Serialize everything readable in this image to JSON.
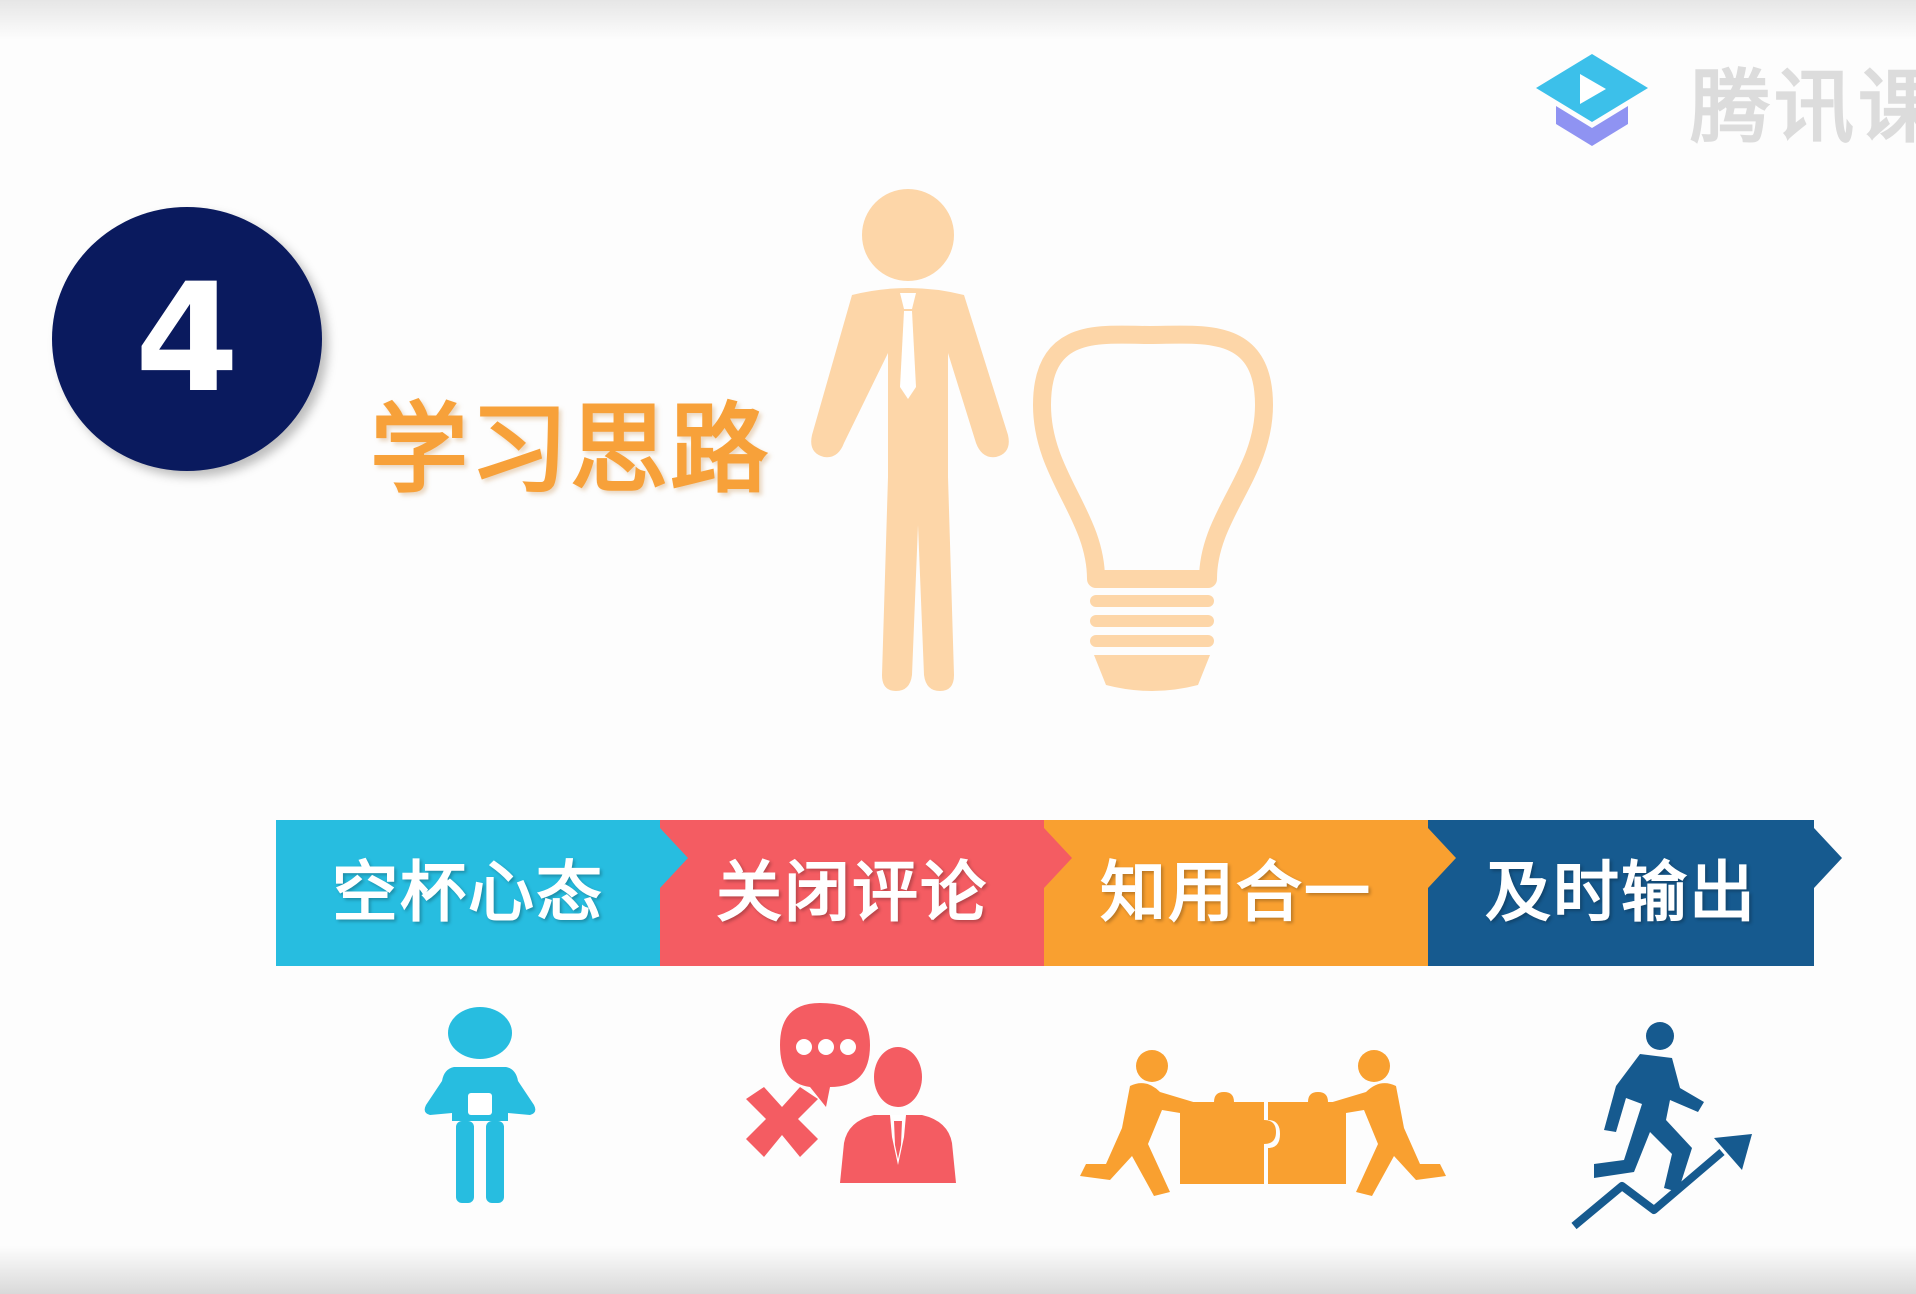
{
  "watermark": {
    "text": "腾讯课",
    "icon": "play-graduation-cap-icon"
  },
  "section": {
    "number": "4",
    "title": "学习思路"
  },
  "steps": [
    {
      "label": "空杯心态",
      "color": "#27bde0",
      "icon": "person-holding-cup-icon"
    },
    {
      "label": "关闭评论",
      "color": "#f45c62",
      "icon": "no-comment-speech-bubble-icon"
    },
    {
      "label": "知用合一",
      "color": "#f9a030",
      "icon": "people-joining-puzzle-icon"
    },
    {
      "label": "及时输出",
      "color": "#165a8f",
      "icon": "running-man-rising-arrow-icon"
    }
  ],
  "colors": {
    "title": "#f7a13a",
    "badge": "#0a1a5e",
    "hero": "#fdd6a8"
  },
  "hero_icon": "businessman-with-lightbulb-icon"
}
